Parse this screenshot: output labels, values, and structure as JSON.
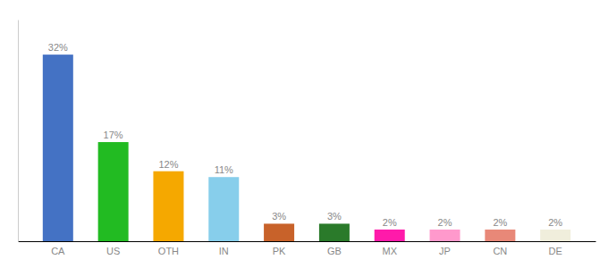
{
  "chart_data": {
    "type": "bar",
    "categories": [
      "CA",
      "US",
      "OTH",
      "IN",
      "PK",
      "GB",
      "MX",
      "JP",
      "CN",
      "DE"
    ],
    "values": [
      32,
      17,
      12,
      11,
      3,
      3,
      2,
      2,
      2,
      2
    ],
    "value_labels": [
      "32%",
      "17%",
      "12%",
      "11%",
      "3%",
      "3%",
      "2%",
      "2%",
      "2%",
      "2%"
    ],
    "colors": [
      "#4472c4",
      "#22bb22",
      "#f5a800",
      "#87ceeb",
      "#c8622a",
      "#2a7a2a",
      "#ff1aaa",
      "#ff99cc",
      "#e88878",
      "#f0eedc"
    ],
    "ylim": [
      0,
      38
    ],
    "data_labels": true,
    "tick_labels": "x"
  }
}
